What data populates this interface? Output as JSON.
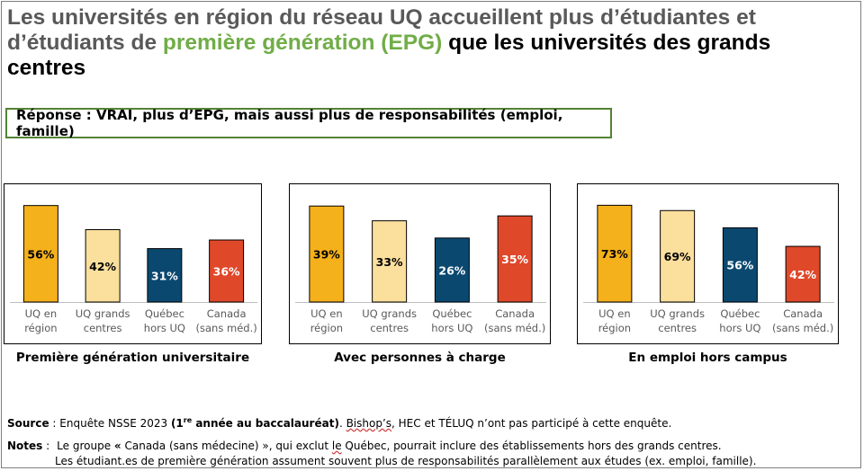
{
  "title": {
    "part1": "Les universités en région du réseau UQ accueillent plus d’étudiantes et d’étudiants de ",
    "highlight": "première génération (EPG)",
    "part2": " que les universités des grands centres"
  },
  "answer": "Réponse : VRAI, plus d’EPG, mais aussi plus de responsabilités (emploi, famille)",
  "colors": {
    "uq_region": "#f5b11b",
    "uq_grands_centres": "#fbdf9c",
    "quebec_hors_uq": "#0a4870",
    "canada": "#e0482a"
  },
  "chart_data": [
    {
      "type": "bar",
      "title": "Première génération universitaire",
      "categories": [
        "UQ en région",
        "UQ grands centres",
        "Québec hors UQ",
        "Canada (sans méd.)"
      ],
      "values": [
        56,
        42,
        31,
        36
      ],
      "labels": [
        "56%",
        "42%",
        "31%",
        "36%"
      ],
      "ylim": [
        0,
        60
      ]
    },
    {
      "type": "bar",
      "title": "Avec personnes à charge",
      "categories": [
        "UQ en région",
        "UQ grands centres",
        "Québec hors UQ",
        "Canada (sans méd.)"
      ],
      "values": [
        39,
        33,
        26,
        35
      ],
      "labels": [
        "39%",
        "33%",
        "26%",
        "35%"
      ],
      "ylim": [
        0,
        42
      ]
    },
    {
      "type": "bar",
      "title": "En emploi hors campus",
      "categories": [
        "UQ en région",
        "UQ grands centres",
        "Québec hors UQ",
        "Canada (sans méd.)"
      ],
      "values": [
        73,
        69,
        56,
        42
      ],
      "labels": [
        "73%",
        "69%",
        "56%",
        "42%"
      ],
      "ylim": [
        0,
        78
      ]
    }
  ],
  "category_lines": [
    [
      "UQ en",
      "région"
    ],
    [
      "UQ grands",
      "centres"
    ],
    [
      "Québec",
      "hors UQ"
    ],
    [
      "Canada",
      "(sans méd.)"
    ]
  ],
  "source": {
    "label": "Source",
    "sep": " : ",
    "text_before": "Enquête NSSE 2023 ",
    "bold_a": "(1",
    "sup": "re",
    "bold_b": " année au baccalauréat)",
    "dot": ". ",
    "bishops": "Bishop’s",
    "text_after": ", HEC et TÉLUQ n’ont pas participé à cette enquête."
  },
  "notes": {
    "label": "Notes",
    "sep": " :",
    "line1_a": "Le groupe ",
    "quote_open": "«",
    "line1_b": " Canada (sans médecine) », qui exclut ",
    "le": "le",
    "line1_c": " Québec, pourrait inclure des établissements hors des grands centres.",
    "line2": "Les étudiant.es de première génération assument souvent plus de responsabilités parallèlement aux études (ex. emploi, famille)."
  }
}
